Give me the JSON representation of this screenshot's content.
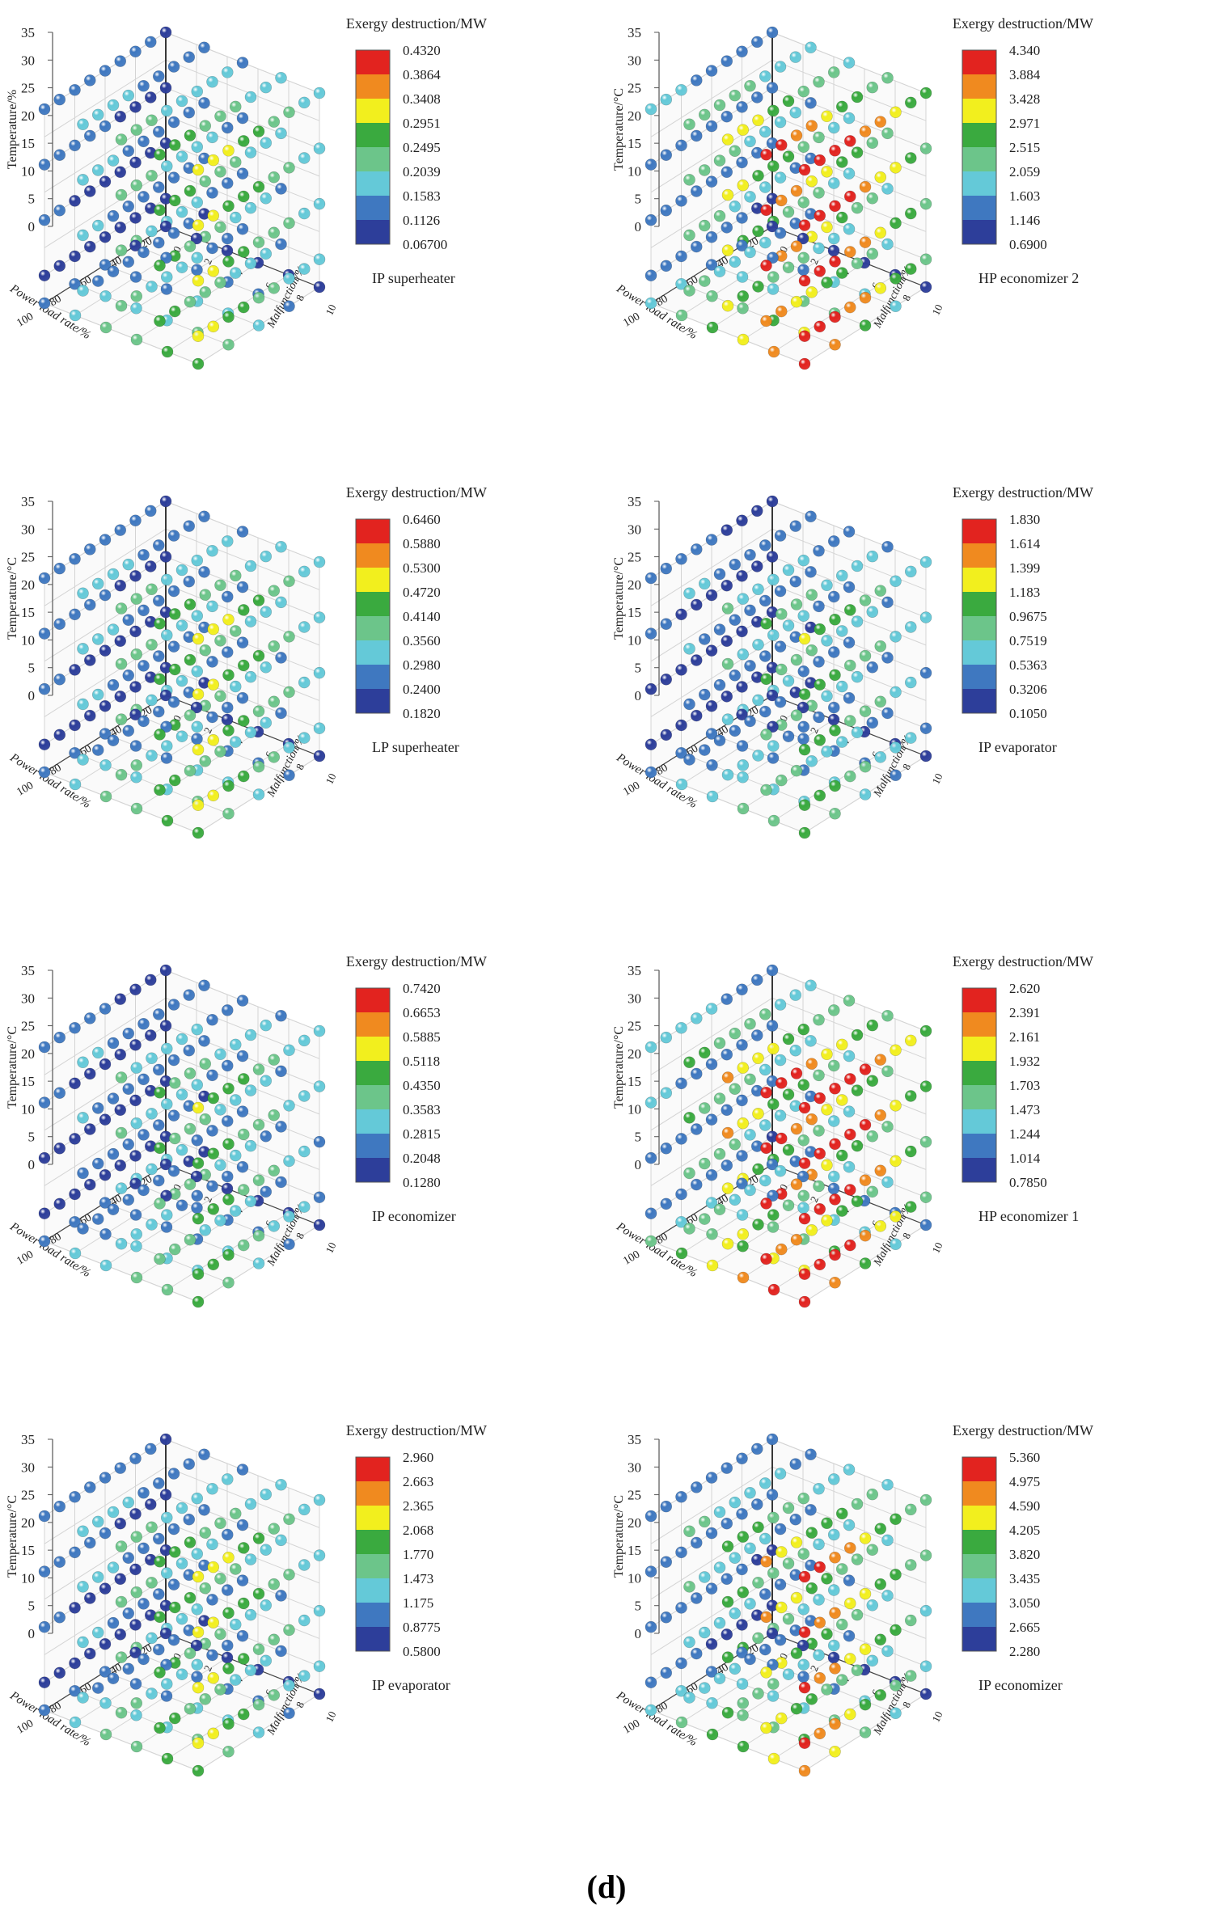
{
  "figure": {
    "caption": "(d)"
  },
  "common": {
    "y_ticks": [
      "35",
      "30",
      "25",
      "20",
      "15",
      "10",
      "5",
      "0"
    ],
    "power_ticks": [
      "20",
      "40",
      "60",
      "80",
      "100"
    ],
    "malfunction_ticks": [
      "10",
      "8",
      "6",
      "4",
      "2",
      "0"
    ],
    "power_label": "Power load rate/%",
    "malfunction_label": "Malfunction/%",
    "legend_title": "Exergy destruction/MW"
  },
  "colors": {
    "scale": [
      "#2d3e9a",
      "#3f78c0",
      "#64c9d8",
      "#6cc58a",
      "#3aaa3f",
      "#f2ef1e",
      "#f08a1f",
      "#e2231f"
    ]
  },
  "chart_data": [
    {
      "type": "scatter",
      "title": "IP superheater",
      "ylabel": "Temperature/%",
      "legend_title": "Exergy destruction/MW",
      "levels": [
        "0.4320",
        "0.3864",
        "0.3408",
        "0.2951",
        "0.2495",
        "0.2039",
        "0.1583",
        "0.1126",
        "0.06700"
      ],
      "vmin": 0.067,
      "vmax": 0.432,
      "x": "Power load rate 20–100 %",
      "y": "Temperature 0–35",
      "z": "Malfunction 0–10 %",
      "hot": 0.35
    },
    {
      "type": "scatter",
      "title": "HP economizer 2",
      "ylabel": "Temperature/°C",
      "legend_title": "Exergy destruction/MW",
      "levels": [
        "4.340",
        "3.884",
        "3.428",
        "2.971",
        "2.515",
        "2.059",
        "1.603",
        "1.146",
        "0.6900"
      ],
      "vmin": 0.69,
      "vmax": 4.34,
      "x": "Power load rate 20–100 %",
      "y": "Temperature 0–35 °C",
      "z": "Malfunction 0–10 %",
      "hot": 0.55
    },
    {
      "type": "scatter",
      "title": "LP superheater",
      "ylabel": "Temperature/°C",
      "legend_title": "Exergy destruction/MW",
      "levels": [
        "0.6460",
        "0.5880",
        "0.5300",
        "0.4720",
        "0.4140",
        "0.3560",
        "0.2980",
        "0.2400",
        "0.1820"
      ],
      "vmin": 0.182,
      "vmax": 0.646,
      "x": "Power load rate 20–100 %",
      "y": "Temperature 0–35 °C",
      "z": "Malfunction 0–10 %",
      "hot": 0.35
    },
    {
      "type": "scatter",
      "title": "IP evaporator",
      "ylabel": "Temperature/°C",
      "legend_title": "Exergy destruction/MW",
      "levels": [
        "1.830",
        "1.614",
        "1.399",
        "1.183",
        "0.9675",
        "0.7519",
        "0.5363",
        "0.3206",
        "0.1050"
      ],
      "vmin": 0.105,
      "vmax": 1.83,
      "x": "Power load rate 20–100 %",
      "y": "Temperature 0–35 °C",
      "z": "Malfunction 0–10 %",
      "hot": 0.3
    },
    {
      "type": "scatter",
      "title": "IP economizer",
      "ylabel": "Temperature/°C",
      "legend_title": "Exergy destruction/MW",
      "levels": [
        "0.7420",
        "0.6653",
        "0.5885",
        "0.5118",
        "0.4350",
        "0.3583",
        "0.2815",
        "0.2048",
        "0.1280"
      ],
      "vmin": 0.128,
      "vmax": 0.742,
      "x": "Power load rate 20–100 %",
      "y": "Temperature 0–35 °C",
      "z": "Malfunction 0–10 %",
      "hot": 0.3
    },
    {
      "type": "scatter",
      "title": "HP economizer 1",
      "ylabel": "Temperature/°C",
      "legend_title": "Exergy destruction/MW",
      "levels": [
        "2.620",
        "2.391",
        "2.161",
        "1.932",
        "1.703",
        "1.473",
        "1.244",
        "1.014",
        "0.7850"
      ],
      "vmin": 0.785,
      "vmax": 2.62,
      "x": "Power load rate 20–100 %",
      "y": "Temperature 0–35 °C",
      "z": "Malfunction 0–10 %",
      "hot": 0.6
    },
    {
      "type": "scatter",
      "title": "IP evaporator",
      "ylabel": "Temperature/°C",
      "legend_title": "Exergy destruction/MW",
      "levels": [
        "2.960",
        "2.663",
        "2.365",
        "2.068",
        "1.770",
        "1.473",
        "1.175",
        "0.8775",
        "0.5800"
      ],
      "vmin": 0.58,
      "vmax": 2.96,
      "x": "Power load rate 20–100 %",
      "y": "Temperature 0–35 °C",
      "z": "Malfunction 0–10 %",
      "hot": 0.35
    },
    {
      "type": "scatter",
      "title": "IP economizer",
      "ylabel": "Temperature/°C",
      "legend_title": "Exergy destruction/MW",
      "levels": [
        "5.360",
        "4.975",
        "4.590",
        "4.205",
        "3.820",
        "3.435",
        "3.050",
        "2.665",
        "2.280"
      ],
      "vmin": 2.28,
      "vmax": 5.36,
      "x": "Power load rate 20–100 %",
      "y": "Temperature 0–35 °C",
      "z": "Malfunction 0–10 %",
      "hot": 0.45
    }
  ]
}
